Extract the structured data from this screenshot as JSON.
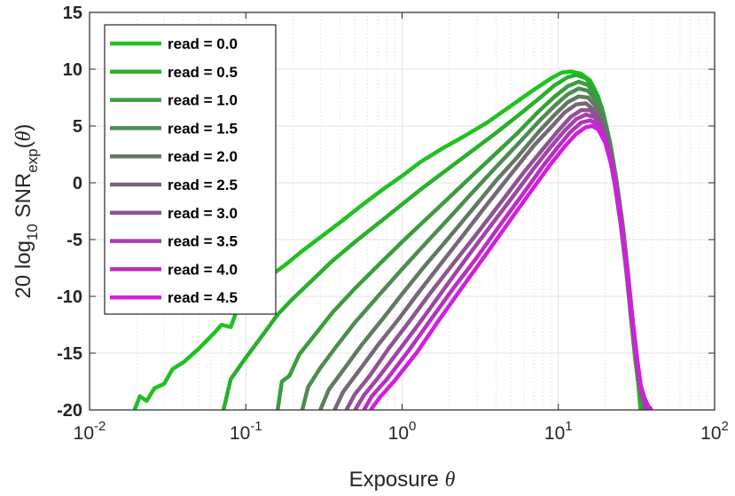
{
  "chart_data": {
    "type": "line",
    "xlabel": "Exposure θ",
    "ylabel": "20 log10 SNRexp(θ)",
    "xscale": "log",
    "xlim": [
      0.01,
      100
    ],
    "ylim": [
      -20,
      15
    ],
    "xtick_labels": [
      {
        "base": "10",
        "exp": "-2"
      },
      {
        "base": "10",
        "exp": "-1"
      },
      {
        "base": "10",
        "exp": "0"
      },
      {
        "base": "10",
        "exp": "1"
      },
      {
        "base": "10",
        "exp": "2"
      }
    ],
    "ytick_labels": [
      "-20",
      "-15",
      "-10",
      "-5",
      "0",
      "5",
      "10",
      "15"
    ],
    "grid": true,
    "minor_grid": true,
    "legend_position": "top-left",
    "series": [
      {
        "name": "read = 0.0",
        "color": "#1fc21f",
        "points": [
          [
            0.0194,
            -20
          ],
          [
            0.021,
            -18.8
          ],
          [
            0.0232,
            -19.2
          ],
          [
            0.026,
            -18.1
          ],
          [
            0.03,
            -17.7
          ],
          [
            0.034,
            -16.4
          ],
          [
            0.04,
            -15.8
          ],
          [
            0.05,
            -14.6
          ],
          [
            0.063,
            -13.2
          ],
          [
            0.07,
            -12.5
          ],
          [
            0.08,
            -12.7
          ],
          [
            0.09,
            -10.8
          ],
          [
            0.11,
            -9.5
          ],
          [
            0.14,
            -8.3
          ],
          [
            0.18,
            -7.2
          ],
          [
            0.23,
            -6.0
          ],
          [
            0.3,
            -4.8
          ],
          [
            0.4,
            -3.5
          ],
          [
            0.55,
            -2.0
          ],
          [
            0.75,
            -0.6
          ],
          [
            1.0,
            0.6
          ],
          [
            1.3,
            1.8
          ],
          [
            1.8,
            3.0
          ],
          [
            2.5,
            4.1
          ],
          [
            3.5,
            5.3
          ],
          [
            5.0,
            6.8
          ],
          [
            7.0,
            8.2
          ],
          [
            9.0,
            9.2
          ],
          [
            10.5,
            9.7
          ],
          [
            12.0,
            9.8
          ],
          [
            14.0,
            9.6
          ],
          [
            16.0,
            9.0
          ],
          [
            18.0,
            7.6
          ],
          [
            20.0,
            5.3
          ],
          [
            22.0,
            2.6
          ],
          [
            24.0,
            -0.6
          ],
          [
            26.0,
            -4.0
          ],
          [
            28.0,
            -8.1
          ],
          [
            30.0,
            -12.6
          ],
          [
            32.0,
            -16.5
          ],
          [
            33.5,
            -20
          ]
        ]
      },
      {
        "name": "read = 0.5",
        "color": "#29b02c",
        "points": [
          [
            0.072,
            -20
          ],
          [
            0.08,
            -17.3
          ],
          [
            0.1,
            -15.4
          ],
          [
            0.13,
            -13.3
          ],
          [
            0.16,
            -11.6
          ],
          [
            0.2,
            -10.2
          ],
          [
            0.27,
            -8.5
          ],
          [
            0.35,
            -7.0
          ],
          [
            0.5,
            -5.2
          ],
          [
            0.7,
            -3.6
          ],
          [
            1.0,
            -1.9
          ],
          [
            1.4,
            -0.3
          ],
          [
            2.0,
            1.3
          ],
          [
            2.8,
            2.8
          ],
          [
            4.0,
            4.4
          ],
          [
            5.5,
            5.9
          ],
          [
            7.5,
            7.4
          ],
          [
            9.5,
            8.6
          ],
          [
            11.5,
            9.3
          ],
          [
            13.0,
            9.5
          ],
          [
            15.0,
            9.2
          ],
          [
            17.0,
            8.3
          ],
          [
            19.0,
            6.6
          ],
          [
            21.0,
            3.9
          ],
          [
            23.0,
            0.6
          ],
          [
            25.0,
            -3.1
          ],
          [
            27.0,
            -7.2
          ],
          [
            29.0,
            -11.6
          ],
          [
            31.0,
            -15.5
          ],
          [
            33.0,
            -18.5
          ],
          [
            34.5,
            -20
          ]
        ]
      },
      {
        "name": "read = 1.0",
        "color": "#399e3c",
        "points": [
          [
            0.16,
            -20
          ],
          [
            0.17,
            -17.5
          ],
          [
            0.19,
            -17.0
          ],
          [
            0.22,
            -15.1
          ],
          [
            0.28,
            -13.3
          ],
          [
            0.36,
            -11.4
          ],
          [
            0.5,
            -9.3
          ],
          [
            0.7,
            -7.3
          ],
          [
            1.0,
            -5.2
          ],
          [
            1.4,
            -3.3
          ],
          [
            2.0,
            -1.3
          ],
          [
            2.8,
            0.6
          ],
          [
            4.0,
            2.6
          ],
          [
            5.5,
            4.4
          ],
          [
            7.5,
            6.3
          ],
          [
            9.5,
            7.6
          ],
          [
            11.5,
            8.5
          ],
          [
            13.5,
            8.9
          ],
          [
            15.5,
            8.6
          ],
          [
            17.5,
            7.7
          ],
          [
            19.5,
            6.0
          ],
          [
            21.5,
            3.5
          ],
          [
            23.5,
            0.3
          ],
          [
            25.5,
            -3.2
          ],
          [
            27.5,
            -7.2
          ],
          [
            29.5,
            -11.5
          ],
          [
            31.5,
            -15.3
          ],
          [
            33.5,
            -18.3
          ],
          [
            35.0,
            -20
          ]
        ]
      },
      {
        "name": "read = 1.5",
        "color": "#4d8c50",
        "points": [
          [
            0.23,
            -20
          ],
          [
            0.25,
            -18.0
          ],
          [
            0.3,
            -16.3
          ],
          [
            0.38,
            -14.4
          ],
          [
            0.5,
            -12.3
          ],
          [
            0.7,
            -10.0
          ],
          [
            1.0,
            -7.6
          ],
          [
            1.4,
            -5.4
          ],
          [
            2.0,
            -3.1
          ],
          [
            2.8,
            -0.9
          ],
          [
            4.0,
            1.4
          ],
          [
            5.5,
            3.4
          ],
          [
            7.5,
            5.4
          ],
          [
            9.5,
            6.8
          ],
          [
            11.5,
            7.8
          ],
          [
            13.5,
            8.3
          ],
          [
            15.5,
            8.1
          ],
          [
            17.5,
            7.2
          ],
          [
            19.5,
            5.6
          ],
          [
            21.5,
            3.2
          ],
          [
            23.5,
            0.1
          ],
          [
            25.5,
            -3.4
          ],
          [
            27.5,
            -7.3
          ],
          [
            29.5,
            -11.5
          ],
          [
            31.5,
            -15.2
          ],
          [
            33.5,
            -18.1
          ],
          [
            35.5,
            -20
          ]
        ]
      },
      {
        "name": "read = 2.0",
        "color": "#607a60",
        "points": [
          [
            0.3,
            -20
          ],
          [
            0.34,
            -18.2
          ],
          [
            0.42,
            -16.5
          ],
          [
            0.55,
            -14.3
          ],
          [
            0.75,
            -12.0
          ],
          [
            1.0,
            -9.8
          ],
          [
            1.4,
            -7.3
          ],
          [
            2.0,
            -4.8
          ],
          [
            2.8,
            -2.4
          ],
          [
            4.0,
            0.2
          ],
          [
            5.5,
            2.3
          ],
          [
            7.5,
            4.5
          ],
          [
            9.5,
            6.0
          ],
          [
            11.5,
            7.1
          ],
          [
            13.5,
            7.6
          ],
          [
            15.5,
            7.5
          ],
          [
            17.5,
            6.7
          ],
          [
            19.5,
            5.2
          ],
          [
            21.5,
            2.9
          ],
          [
            23.5,
            -0.1
          ],
          [
            25.5,
            -3.5
          ],
          [
            27.5,
            -7.4
          ],
          [
            29.5,
            -11.5
          ],
          [
            31.5,
            -15.1
          ],
          [
            33.5,
            -18.0
          ],
          [
            36.0,
            -20
          ]
        ]
      },
      {
        "name": "read = 2.5",
        "color": "#766878",
        "points": [
          [
            0.37,
            -20
          ],
          [
            0.42,
            -18.4
          ],
          [
            0.52,
            -16.7
          ],
          [
            0.7,
            -14.3
          ],
          [
            0.95,
            -12.0
          ],
          [
            1.3,
            -9.5
          ],
          [
            1.8,
            -7.0
          ],
          [
            2.5,
            -4.5
          ],
          [
            3.5,
            -1.9
          ],
          [
            5.0,
            0.8
          ],
          [
            7.0,
            3.3
          ],
          [
            9.0,
            4.9
          ],
          [
            11.0,
            6.2
          ],
          [
            13.0,
            6.9
          ],
          [
            15.0,
            7.0
          ],
          [
            17.0,
            6.4
          ],
          [
            19.0,
            5.0
          ],
          [
            21.0,
            2.8
          ],
          [
            23.0,
            -0.2
          ],
          [
            25.0,
            -3.6
          ],
          [
            27.0,
            -7.4
          ],
          [
            29.0,
            -11.4
          ],
          [
            31.0,
            -15.0
          ],
          [
            33.0,
            -17.8
          ],
          [
            36.5,
            -20
          ]
        ]
      },
      {
        "name": "read = 3.0",
        "color": "#8c5590",
        "points": [
          [
            0.44,
            -20
          ],
          [
            0.5,
            -18.6
          ],
          [
            0.62,
            -17.0
          ],
          [
            0.82,
            -14.6
          ],
          [
            1.1,
            -12.3
          ],
          [
            1.5,
            -9.8
          ],
          [
            2.1,
            -7.2
          ],
          [
            3.0,
            -4.5
          ],
          [
            4.2,
            -1.9
          ],
          [
            6.0,
            0.9
          ],
          [
            8.0,
            3.0
          ],
          [
            10.0,
            4.6
          ],
          [
            12.0,
            5.8
          ],
          [
            14.0,
            6.4
          ],
          [
            16.0,
            6.4
          ],
          [
            18.0,
            5.7
          ],
          [
            20.0,
            4.2
          ],
          [
            22.0,
            1.9
          ],
          [
            24.0,
            -1.1
          ],
          [
            26.0,
            -4.6
          ],
          [
            28.0,
            -8.4
          ],
          [
            30.0,
            -12.3
          ],
          [
            32.0,
            -15.7
          ],
          [
            34.0,
            -18.5
          ],
          [
            37.0,
            -20
          ]
        ]
      },
      {
        "name": "read = 3.5",
        "color": "#a143a8",
        "points": [
          [
            0.5,
            -20
          ],
          [
            0.57,
            -18.7
          ],
          [
            0.7,
            -17.2
          ],
          [
            0.95,
            -14.8
          ],
          [
            1.3,
            -12.3
          ],
          [
            1.8,
            -9.6
          ],
          [
            2.5,
            -6.9
          ],
          [
            3.5,
            -4.2
          ],
          [
            5.0,
            -1.4
          ],
          [
            7.0,
            1.3
          ],
          [
            9.0,
            3.2
          ],
          [
            11.0,
            4.6
          ],
          [
            13.0,
            5.6
          ],
          [
            15.0,
            6.0
          ],
          [
            17.0,
            5.8
          ],
          [
            19.0,
            4.8
          ],
          [
            21.0,
            3.0
          ],
          [
            23.0,
            0.4
          ],
          [
            25.0,
            -2.9
          ],
          [
            27.0,
            -6.6
          ],
          [
            29.0,
            -10.6
          ],
          [
            31.0,
            -14.4
          ],
          [
            33.0,
            -17.4
          ],
          [
            37.5,
            -20
          ]
        ]
      },
      {
        "name": "read = 4.0",
        "color": "#b830c0",
        "points": [
          [
            0.57,
            -20
          ],
          [
            0.64,
            -18.8
          ],
          [
            0.8,
            -17.3
          ],
          [
            1.1,
            -14.8
          ],
          [
            1.5,
            -12.2
          ],
          [
            2.1,
            -9.4
          ],
          [
            3.0,
            -6.6
          ],
          [
            4.2,
            -3.8
          ],
          [
            6.0,
            -0.9
          ],
          [
            8.0,
            1.5
          ],
          [
            10.0,
            3.2
          ],
          [
            12.0,
            4.5
          ],
          [
            14.0,
            5.3
          ],
          [
            16.0,
            5.5
          ],
          [
            18.0,
            5.1
          ],
          [
            20.0,
            3.8
          ],
          [
            22.0,
            1.7
          ],
          [
            24.0,
            -1.2
          ],
          [
            26.0,
            -4.6
          ],
          [
            28.0,
            -8.4
          ],
          [
            30.0,
            -12.2
          ],
          [
            32.0,
            -15.6
          ],
          [
            34.0,
            -18.3
          ],
          [
            38.5,
            -20
          ]
        ]
      },
      {
        "name": "read = 4.5",
        "color": "#d21ede",
        "points": [
          [
            0.63,
            -20
          ],
          [
            0.72,
            -18.9
          ],
          [
            0.9,
            -17.4
          ],
          [
            1.25,
            -14.9
          ],
          [
            1.7,
            -12.2
          ],
          [
            2.4,
            -9.3
          ],
          [
            3.4,
            -6.4
          ],
          [
            4.8,
            -3.5
          ],
          [
            6.8,
            -0.6
          ],
          [
            9.0,
            1.7
          ],
          [
            11.0,
            3.2
          ],
          [
            13.0,
            4.3
          ],
          [
            15.0,
            4.9
          ],
          [
            16.5,
            5.0
          ],
          [
            18.0,
            4.7
          ],
          [
            20.0,
            3.5
          ],
          [
            22.0,
            1.4
          ],
          [
            24.0,
            -1.5
          ],
          [
            26.0,
            -4.9
          ],
          [
            28.0,
            -8.7
          ],
          [
            30.0,
            -12.4
          ],
          [
            32.0,
            -15.7
          ],
          [
            34.0,
            -18.2
          ],
          [
            36.0,
            -19.3
          ],
          [
            39.5,
            -20
          ]
        ]
      }
    ]
  }
}
